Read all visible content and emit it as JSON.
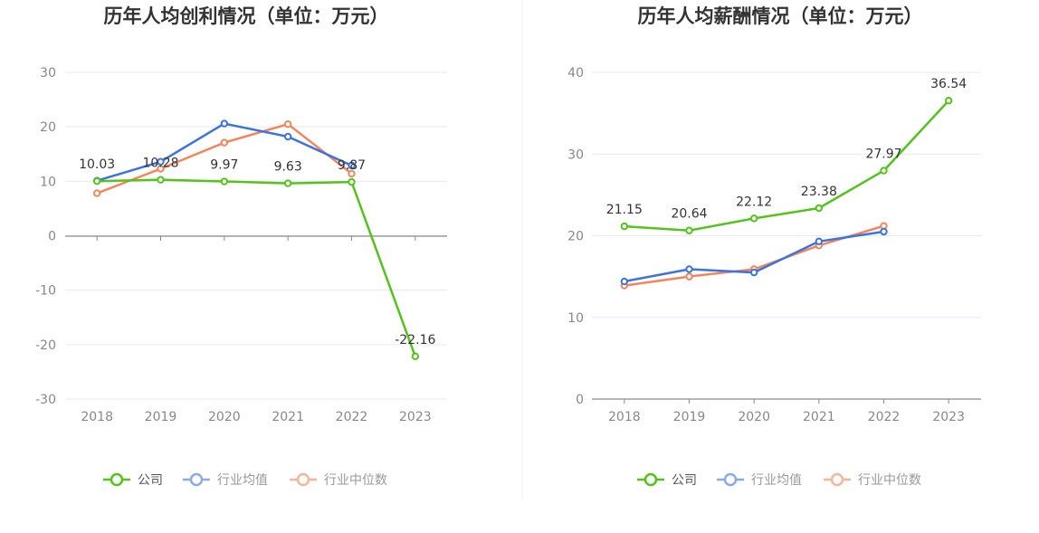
{
  "chart_data": [
    {
      "type": "line",
      "title": "历年人均创利情况（单位：万元）",
      "categories": [
        "2018",
        "2019",
        "2020",
        "2021",
        "2022",
        "2023"
      ],
      "ylim": [
        -30,
        30
      ],
      "yticks": [
        30,
        20,
        10,
        0,
        -10,
        -20,
        -30
      ],
      "grid": true,
      "legend_position": "bottom",
      "series": [
        {
          "name": "公司",
          "color": "#52c41a",
          "values": [
            10.03,
            10.28,
            9.97,
            9.63,
            9.87,
            -22.16
          ],
          "labels": [
            "10.03",
            "10.28",
            "9.97",
            "9.63",
            "9.87",
            "-22.16"
          ]
        },
        {
          "name": "行业均值",
          "color": "#3b74e0",
          "values": [
            10.1,
            13.6,
            20.6,
            18.2,
            12.9,
            null
          ]
        },
        {
          "name": "行业中位数",
          "color": "#f5845a",
          "values": [
            7.8,
            12.3,
            17.1,
            20.5,
            11.4,
            null
          ]
        }
      ]
    },
    {
      "type": "line",
      "title": "历年人均薪酬情况（单位：万元）",
      "categories": [
        "2018",
        "2019",
        "2020",
        "2021",
        "2022",
        "2023"
      ],
      "ylim": [
        0,
        40
      ],
      "yticks": [
        40,
        30,
        20,
        10,
        0
      ],
      "grid": true,
      "legend_position": "bottom",
      "series": [
        {
          "name": "公司",
          "color": "#52c41a",
          "values": [
            21.15,
            20.64,
            22.12,
            23.38,
            27.97,
            36.54
          ],
          "labels": [
            "21.15",
            "20.64",
            "22.12",
            "23.38",
            "27.97",
            "36.54"
          ]
        },
        {
          "name": "行业均值",
          "color": "#3b74e0",
          "values": [
            14.4,
            15.9,
            15.5,
            19.3,
            20.5,
            null
          ]
        },
        {
          "name": "行业中位数",
          "color": "#f5845a",
          "values": [
            13.9,
            15.0,
            15.9,
            18.8,
            21.2,
            null
          ]
        }
      ]
    }
  ]
}
